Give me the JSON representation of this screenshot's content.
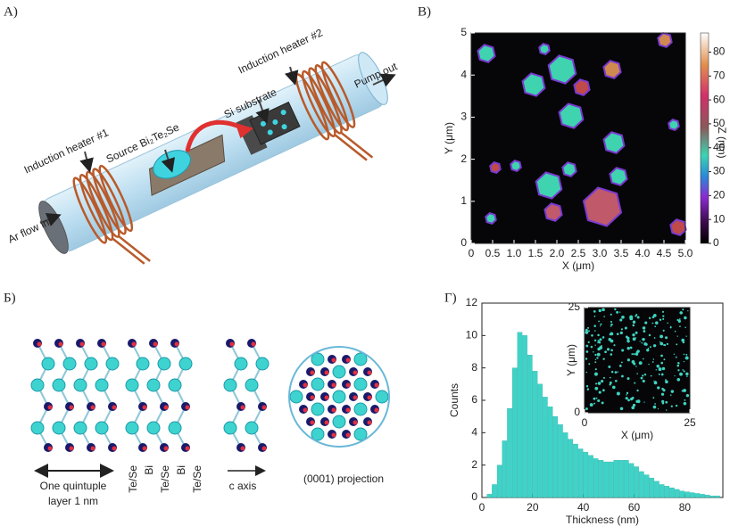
{
  "panel_a": {
    "label": "A)",
    "heater_1": "Induction heater #1",
    "heater_2": "Induction heater #2",
    "source": "Source Bi₂Te₂Se",
    "substrate": "Si substrate",
    "pump": "Pump out",
    "flow": "Ar flow in"
  },
  "panel_b": {
    "label": "Б)",
    "scale_line_1": "One quintuple",
    "scale_line_2": "layer 1 nm",
    "layers": [
      "Te/Se",
      "Bi",
      "Te/Se",
      "Bi",
      "Te/Se"
    ],
    "c_axis": "c axis",
    "projection": "(0001) projection"
  },
  "chart_data": [
    {
      "type": "image",
      "label": "B)",
      "xlabel": "X (μm)",
      "ylabel": "Y (μm)",
      "zlabel": "Z (nm)",
      "xlim": [
        0,
        5
      ],
      "ylim": [
        0,
        5
      ],
      "zlim": [
        0,
        88
      ],
      "xticks": [
        0,
        0.5,
        {
          "value": 1,
          "label": "1.0"
        },
        1.5,
        {
          "value": 2,
          "label": "2.0"
        },
        2.5,
        {
          "value": 3,
          "label": "3.0"
        },
        3.5,
        {
          "value": 4,
          "label": "4.0"
        },
        4.5,
        {
          "value": 5,
          "label": "5.0"
        }
      ],
      "yticks": [
        0,
        1,
        2,
        3,
        4,
        5
      ],
      "zticks": [
        0,
        10,
        20,
        30,
        40,
        50,
        60,
        70,
        80
      ]
    },
    {
      "type": "histogram",
      "label": "Г)",
      "xlabel": "Thickness (nm)",
      "ylabel": "Counts",
      "color": "#3fd3c8",
      "bins": [
        2,
        4,
        6,
        8,
        10,
        12,
        14,
        16,
        18,
        20,
        22,
        24,
        26,
        28,
        30,
        32,
        34,
        36,
        38,
        40,
        42,
        44,
        46,
        48,
        50,
        52,
        54,
        56,
        58,
        60,
        62,
        64,
        66,
        68,
        70,
        72,
        74,
        76,
        78,
        80,
        82,
        84,
        86,
        88,
        90,
        92,
        94
      ],
      "values": [
        0.2,
        0.8,
        2.0,
        3.5,
        5.5,
        8.0,
        10.2,
        10.0,
        8.8,
        7.8,
        7.0,
        6.2,
        5.6,
        5.0,
        4.5,
        4.0,
        3.6,
        3.3,
        3.0,
        2.8,
        2.6,
        2.4,
        2.3,
        2.2,
        2.2,
        2.3,
        2.3,
        2.3,
        2.1,
        1.9,
        1.6,
        1.4,
        1.2,
        1.0,
        0.8,
        0.7,
        0.6,
        0.5,
        0.4,
        0.35,
        0.3,
        0.25,
        0.2,
        0.15,
        0.1,
        0.1
      ],
      "xlim": [
        0,
        95
      ],
      "ylim": [
        0,
        12
      ],
      "xticks": [
        0,
        20,
        40,
        60,
        80
      ],
      "yticks": [
        0,
        2,
        4,
        6,
        8,
        10,
        12
      ],
      "inset": {
        "type": "image",
        "xlabel": "X (μm)",
        "ylabel": "Y (μm)",
        "xlim": [
          0,
          25
        ],
        "ylim": [
          0,
          25
        ],
        "xticks": [
          0,
          25
        ],
        "yticks": [
          0,
          25
        ]
      }
    }
  ]
}
